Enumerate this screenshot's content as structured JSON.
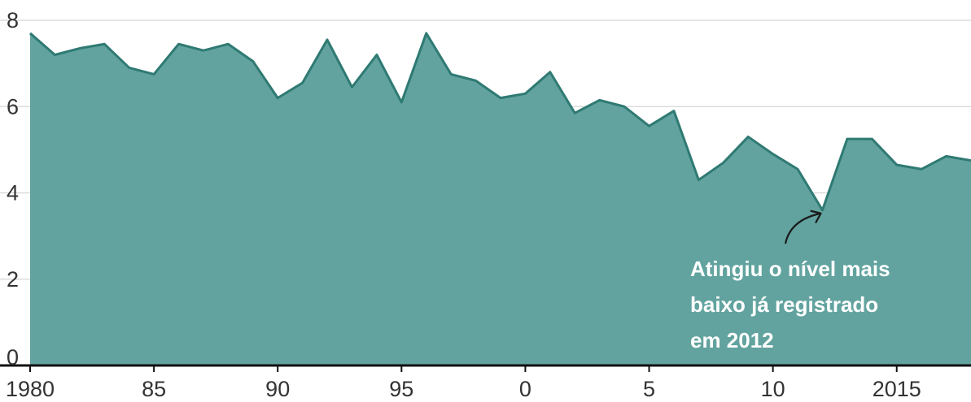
{
  "chart_data": {
    "type": "area",
    "title": "",
    "xlabel": "",
    "ylabel": "",
    "x": [
      1980,
      1981,
      1982,
      1983,
      1984,
      1985,
      1986,
      1987,
      1988,
      1989,
      1990,
      1991,
      1992,
      1993,
      1994,
      1995,
      1996,
      1997,
      1998,
      1999,
      2000,
      2001,
      2002,
      2003,
      2004,
      2005,
      2006,
      2007,
      2008,
      2009,
      2010,
      2011,
      2012,
      2013,
      2014,
      2015,
      2016,
      2017,
      2018
    ],
    "series": [
      {
        "values": [
          7.7,
          7.2,
          7.35,
          7.45,
          6.9,
          6.75,
          7.45,
          7.3,
          7.45,
          7.05,
          6.2,
          6.55,
          7.55,
          6.45,
          7.2,
          6.1,
          7.7,
          6.75,
          6.6,
          6.2,
          6.3,
          6.8,
          5.85,
          6.15,
          6.0,
          5.55,
          5.9,
          4.3,
          4.7,
          5.3,
          4.9,
          4.55,
          3.6,
          5.25,
          5.25,
          4.65,
          4.55,
          4.85,
          4.75
        ],
        "color": "#62a39f"
      }
    ],
    "ylim": [
      0,
      8
    ],
    "xlim": [
      1980,
      2018
    ],
    "y_ticks": [
      0,
      2,
      4,
      6,
      8
    ],
    "y_tick_labels": [
      "0",
      "2",
      "4",
      "6",
      "8"
    ],
    "x_ticks": [
      1980,
      1985,
      1990,
      1995,
      2000,
      2005,
      2010,
      2015
    ],
    "x_tick_labels": [
      "1980",
      "85",
      "90",
      "95",
      "0",
      "5",
      "10",
      "2015"
    ],
    "grid": true,
    "annotation": {
      "lines": [
        "Atingiu o nível mais",
        "baixo já registrado",
        "em 2012"
      ],
      "target_x": 2012,
      "target_y": 3.6
    },
    "colors": {
      "fill": "#62a39f",
      "line": "#2f7a73",
      "grid": "#d5d5d5",
      "axis": "#111111",
      "text": "#333333",
      "annotation_text": "#ffffff",
      "arrow": "#1a1a1a"
    }
  }
}
